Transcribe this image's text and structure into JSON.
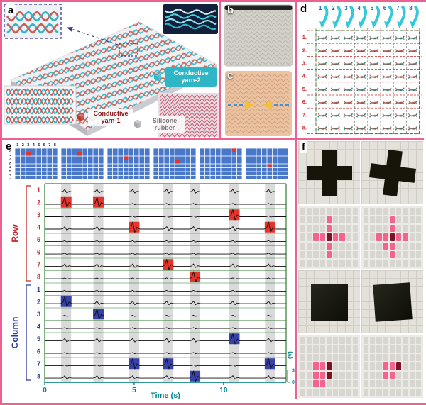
{
  "panels": {
    "a": {
      "label": "a",
      "legend_yarn2": "Conductive yarn-2",
      "legend_yarn1": "Conductive yarn-1",
      "legend_rubber": "Silicone rubber",
      "colors": {
        "yarn2": "#2fb6c6",
        "yarn1": "#c0392b",
        "rubber": "#a8a8ae"
      }
    },
    "b": {
      "label": "b"
    },
    "c": {
      "label": "c"
    },
    "d": {
      "label": "d",
      "column_numbers": [
        "1",
        "2",
        "3",
        "4",
        "5",
        "6",
        "7",
        "8"
      ],
      "row_numbers": [
        "1.",
        "2.",
        "3.",
        "4.",
        "5.",
        "6.",
        "7.",
        "8."
      ],
      "arrow_color": "#35c8d8",
      "number_color": "#1f5bb5"
    },
    "e": {
      "label": "e"
    },
    "f": {
      "label": "f",
      "map_grid": {
        "cols": 9,
        "rows": 7
      },
      "colors": {
        "tile": "#d8d6d1",
        "pink": "#f4628e",
        "dark": "#7c1322",
        "object": "#17140a"
      },
      "maps": [
        {
          "name": "cross-map-1",
          "pink": [
            [
              4,
              1
            ],
            [
              4,
              2
            ],
            [
              2,
              3
            ],
            [
              3,
              3
            ],
            [
              5,
              3
            ],
            [
              6,
              3
            ],
            [
              4,
              4
            ],
            [
              4,
              5
            ]
          ],
          "dark": [
            [
              4,
              3
            ]
          ]
        },
        {
          "name": "cross-map-2",
          "pink": [
            [
              4,
              1
            ],
            [
              4,
              2
            ],
            [
              2,
              3
            ],
            [
              3,
              3
            ],
            [
              5,
              3
            ],
            [
              6,
              3
            ],
            [
              4,
              4
            ],
            [
              4,
              5
            ],
            [
              3,
              4
            ]
          ],
          "dark": [
            [
              4,
              3
            ]
          ]
        },
        {
          "name": "square-map-1",
          "pink": [
            [
              2,
              3
            ],
            [
              3,
              3
            ],
            [
              2,
              4
            ],
            [
              3,
              4
            ],
            [
              2,
              5
            ],
            [
              3,
              5
            ]
          ],
          "dark": [
            [
              4,
              3
            ],
            [
              4,
              4
            ]
          ]
        },
        {
          "name": "square-map-2",
          "pink": [
            [
              3,
              3
            ],
            [
              4,
              3
            ],
            [
              3,
              4
            ],
            [
              4,
              4
            ]
          ],
          "dark": [
            [
              5,
              3
            ]
          ]
        }
      ]
    }
  },
  "chart_data": {
    "type": "line",
    "xlabel": "Time (s)",
    "x_range": [
      0,
      13.5
    ],
    "x_ticks": [
      0,
      5,
      10
    ],
    "volt_label": "(V)",
    "volt_ticks": [
      0,
      3
    ],
    "row_label": "Row",
    "column_label": "Column",
    "row_channels": [
      "1",
      "2",
      "3",
      "4",
      "5",
      "6",
      "7",
      "8"
    ],
    "column_channels": [
      "1",
      "2",
      "3",
      "4",
      "5",
      "6",
      "7",
      "8"
    ],
    "band_color": "#c2c2c2",
    "row_highlight_color": "#e5342c",
    "column_highlight_color": "#3642a8",
    "press_events": [
      {
        "time": 1.2,
        "row": 2,
        "col": 2
      },
      {
        "time": 3.0,
        "row": 2,
        "col": 3
      },
      {
        "time": 5.0,
        "row": 4,
        "col": 7
      },
      {
        "time": 6.9,
        "row": 7,
        "col": 7
      },
      {
        "time": 8.4,
        "row": 8,
        "col": 8
      },
      {
        "time": 10.6,
        "row": 3,
        "col": 5
      },
      {
        "time": 12.6,
        "row": 4,
        "col": 7
      }
    ],
    "grid_maps": {
      "top_numbers": [
        "1",
        "2",
        "3",
        "4",
        "5",
        "6",
        "7",
        "8"
      ],
      "side_numbers": [
        "8",
        "7",
        "6",
        "5",
        "4",
        "3",
        "2",
        "1"
      ],
      "cell_on_color": "#e5342c",
      "cell_off_color": "#4a78c8",
      "frames": [
        {
          "active": [
            [
              3,
              2
            ]
          ]
        },
        {
          "active": [
            [
              4,
              2
            ]
          ]
        },
        {
          "active": [
            [
              4,
              3
            ]
          ]
        },
        {
          "active": [
            [
              5,
              4
            ]
          ]
        },
        {
          "active": [
            [
              7,
              1
            ]
          ]
        },
        {
          "active": [
            [
              5,
              5
            ]
          ]
        }
      ]
    }
  }
}
